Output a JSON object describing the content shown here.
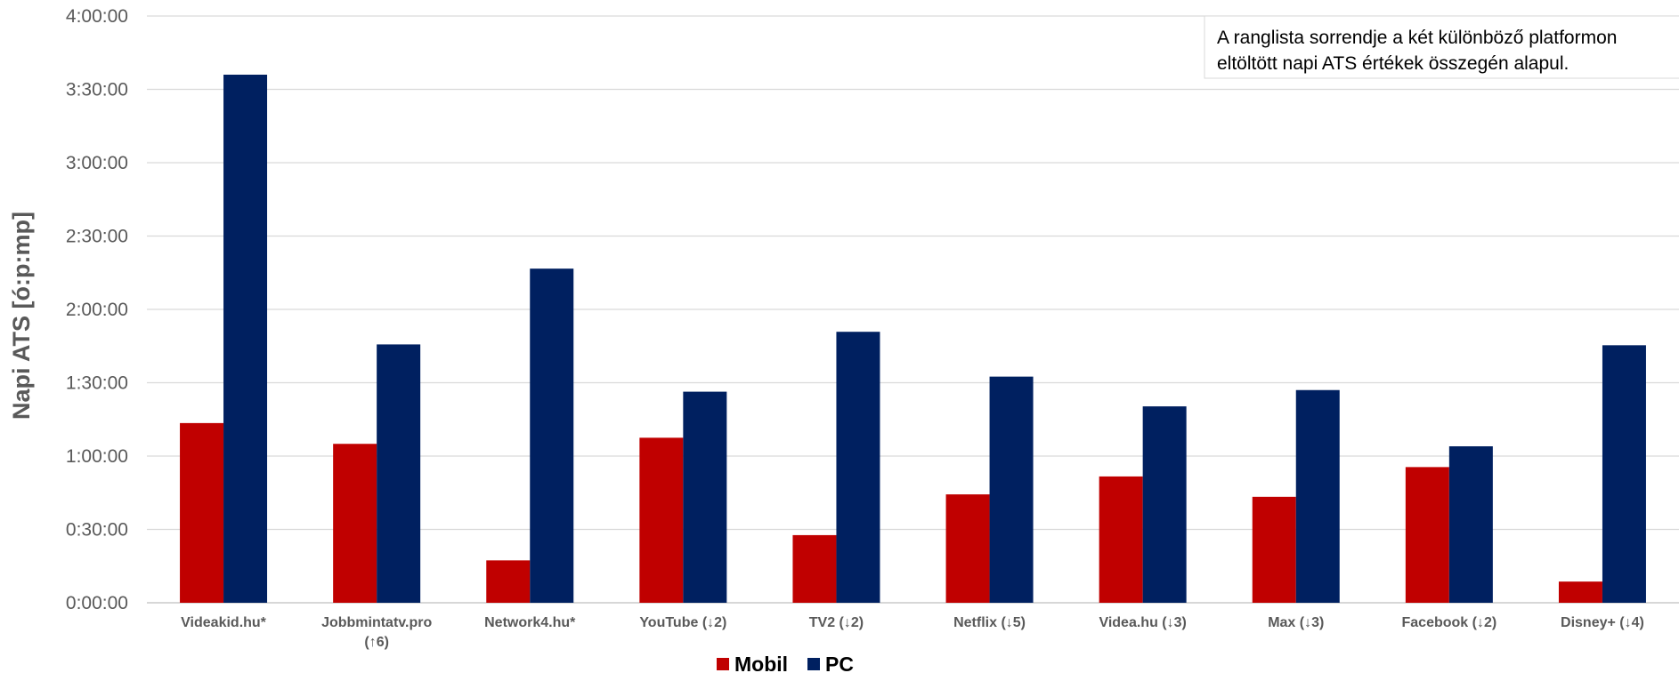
{
  "chart_data": {
    "type": "bar",
    "title": "",
    "xlabel": "",
    "ylabel": "Napi ATS [ó:p:mp]",
    "y_unit": "seconds",
    "ylim": [
      0,
      14400
    ],
    "y_ticks": [
      {
        "value": 0,
        "label": "0:00:00"
      },
      {
        "value": 1800,
        "label": "0:30:00"
      },
      {
        "value": 3600,
        "label": "1:00:00"
      },
      {
        "value": 5400,
        "label": "1:30:00"
      },
      {
        "value": 7200,
        "label": "2:00:00"
      },
      {
        "value": 9000,
        "label": "2:30:00"
      },
      {
        "value": 10800,
        "label": "3:00:00"
      },
      {
        "value": 12600,
        "label": "3:30:00"
      },
      {
        "value": 14400,
        "label": "4:00:00"
      }
    ],
    "grid": true,
    "categories": [
      [
        "Videakid.hu*"
      ],
      [
        "Jobbmintatv.pro",
        "(↑6)"
      ],
      [
        "Network4.hu*"
      ],
      [
        "YouTube (↓2)"
      ],
      [
        "TV2 (↓2)"
      ],
      [
        "Netflix (↓5)"
      ],
      [
        "Videa.hu (↓3)"
      ],
      [
        "Max (↓3)"
      ],
      [
        "Facebook (↓2)"
      ],
      [
        "Disney+ (↓4)"
      ]
    ],
    "series": [
      {
        "name": "Mobil",
        "color": "#C00000",
        "values": [
          4410,
          3900,
          1040,
          4050,
          1660,
          2660,
          3100,
          2600,
          3330,
          520
        ]
      },
      {
        "name": "PC",
        "color": "#002060",
        "values": [
          12960,
          6340,
          8200,
          5180,
          6650,
          5550,
          4820,
          5220,
          3840,
          6320
        ]
      }
    ],
    "legend_position": "bottom-center",
    "annotation": {
      "lines": [
        "A ranglista sorrendje a két különböző platformon",
        "eltöltött napi ATS értékek összegén alapul."
      ]
    }
  }
}
